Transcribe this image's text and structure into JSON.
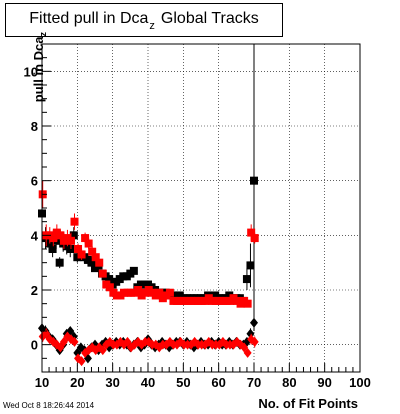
{
  "chart_data": {
    "type": "scatter",
    "title": "Fitted pull in Dca",
    "title_subscript": "z",
    "title_suffix": "Global Tracks",
    "ylabel": "pull in Dca",
    "ylabel_subscript": "z",
    "xlabel": "No. of Fit Points",
    "xlim": [
      10,
      100
    ],
    "ylim": [
      -1,
      11
    ],
    "x_ticks": [
      10,
      20,
      30,
      40,
      50,
      60,
      70,
      80,
      90,
      100
    ],
    "y_ticks": [
      0,
      2,
      4,
      6,
      8,
      10
    ],
    "grid": true,
    "series": [
      {
        "color": "#000000",
        "marker": "square",
        "x": [
          10,
          11,
          12,
          13,
          14,
          15,
          16,
          17,
          18,
          19,
          20,
          21,
          22,
          23,
          24,
          25,
          26,
          27,
          28,
          29,
          30,
          31,
          32,
          33,
          34,
          35,
          36,
          37,
          38,
          39,
          40,
          41,
          42,
          43,
          44,
          45,
          46,
          47,
          48,
          49,
          50,
          51,
          52,
          53,
          54,
          55,
          56,
          57,
          58,
          59,
          60,
          61,
          62,
          63,
          64,
          65,
          66,
          67,
          68,
          69,
          70
        ],
        "y": [
          4.8,
          3.9,
          3.7,
          3.5,
          3.8,
          3.0,
          3.7,
          3.6,
          3.5,
          4.0,
          3.2,
          3.3,
          3.2,
          3.1,
          3.0,
          2.8,
          2.9,
          2.6,
          2.5,
          2.4,
          2.2,
          2.3,
          2.4,
          2.5,
          2.5,
          2.6,
          2.7,
          2.1,
          2.2,
          2.2,
          2.2,
          2.1,
          2.0,
          1.9,
          1.9,
          1.9,
          1.8,
          1.8,
          1.8,
          1.8,
          1.7,
          1.7,
          1.7,
          1.7,
          1.7,
          1.7,
          1.7,
          1.8,
          1.7,
          1.8,
          1.7,
          1.7,
          1.7,
          1.8,
          1.7,
          1.7,
          1.7,
          1.6,
          2.4,
          2.9,
          6.0
        ],
        "yerr": [
          0.6,
          0.4,
          0.3,
          0.3,
          0.3,
          0.2,
          0.3,
          0.3,
          0.3,
          0.3,
          0.2,
          0.2,
          0.2,
          0.2,
          0.2,
          0.1,
          0.1,
          0.1,
          0.1,
          0.1,
          0.1,
          0.1,
          0.1,
          0.1,
          0.1,
          0.1,
          0.1,
          0.1,
          0.1,
          0.1,
          0.1,
          0.1,
          0.1,
          0.1,
          0.1,
          0.1,
          0.1,
          0.1,
          0.1,
          0.1,
          0.1,
          0.1,
          0.1,
          0.1,
          0.1,
          0.1,
          0.1,
          0.1,
          0.1,
          0.1,
          0.1,
          0.1,
          0.1,
          0.1,
          0.1,
          0.1,
          0.1,
          0.1,
          0.4,
          0.8,
          5.5
        ]
      },
      {
        "color": "#ff0000",
        "marker": "square",
        "x": [
          10.2,
          11.2,
          12.2,
          13.2,
          14.2,
          15.2,
          16.2,
          17.2,
          18.2,
          19.2,
          20.2,
          21.2,
          22.2,
          23.2,
          24.2,
          25.2,
          26.2,
          27.2,
          28.2,
          29.2,
          30.2,
          31.2,
          32.2,
          33.2,
          34.2,
          35.2,
          36.2,
          37.2,
          38.2,
          39.2,
          40.2,
          41.2,
          42.2,
          43.2,
          44.2,
          45.2,
          46.2,
          47.2,
          48.2,
          49.2,
          50.2,
          51.2,
          52.2,
          53.2,
          54.2,
          55.2,
          56.2,
          57.2,
          58.2,
          59.2,
          60.2,
          61.2,
          62.2,
          63.2,
          64.2,
          65.2,
          66.2,
          67.2,
          68.2,
          69.2,
          70.2
        ],
        "y": [
          5.5,
          4.0,
          4.0,
          3.9,
          4.1,
          4.0,
          3.8,
          3.9,
          3.8,
          4.5,
          3.5,
          3.3,
          3.9,
          3.7,
          3.4,
          3.2,
          3.0,
          2.6,
          2.2,
          2.1,
          1.9,
          1.8,
          1.8,
          1.9,
          1.9,
          1.9,
          1.9,
          2.0,
          1.8,
          1.9,
          2.0,
          1.9,
          1.8,
          1.9,
          1.7,
          1.8,
          1.9,
          1.6,
          1.6,
          1.6,
          1.6,
          1.6,
          1.6,
          1.6,
          1.6,
          1.6,
          1.6,
          1.7,
          1.6,
          1.6,
          1.6,
          1.6,
          1.6,
          1.6,
          1.7,
          1.6,
          1.5,
          1.6,
          1.5,
          4.1,
          3.9
        ],
        "yerr": [
          0.5,
          0.4,
          0.3,
          0.3,
          0.3,
          0.2,
          0.3,
          0.3,
          0.3,
          0.3,
          0.2,
          0.2,
          0.2,
          0.2,
          0.2,
          0.1,
          0.1,
          0.1,
          0.1,
          0.1,
          0.1,
          0.1,
          0.1,
          0.1,
          0.1,
          0.1,
          0.1,
          0.1,
          0.1,
          0.1,
          0.1,
          0.1,
          0.1,
          0.1,
          0.1,
          0.1,
          0.1,
          0.1,
          0.1,
          0.1,
          0.1,
          0.1,
          0.1,
          0.1,
          0.1,
          0.1,
          0.1,
          0.1,
          0.1,
          0.1,
          0.1,
          0.1,
          0.1,
          0.1,
          0.1,
          0.1,
          0.1,
          0.1,
          0.1,
          0.3,
          0.2
        ]
      },
      {
        "color": "#000000",
        "marker": "diamond",
        "x": [
          10,
          11,
          12,
          13,
          14,
          15,
          16,
          17,
          18,
          19,
          20,
          21,
          22,
          23,
          24,
          25,
          26,
          27,
          28,
          29,
          30,
          31,
          32,
          33,
          34,
          35,
          36,
          37,
          38,
          39,
          40,
          41,
          42,
          43,
          44,
          45,
          46,
          47,
          48,
          49,
          50,
          51,
          52,
          53,
          54,
          55,
          56,
          57,
          58,
          59,
          60,
          61,
          62,
          63,
          64,
          65,
          66,
          67,
          68,
          69,
          70
        ],
        "y": [
          0.6,
          0.5,
          0.3,
          0.2,
          0.0,
          -0.2,
          0.0,
          0.4,
          0.5,
          0.3,
          -0.3,
          -0.1,
          -0.2,
          -0.5,
          -0.1,
          0.0,
          -0.2,
          0.0,
          0.1,
          -0.1,
          0.0,
          0.1,
          0.0,
          0.1,
          0.0,
          -0.1,
          0.0,
          0.1,
          -0.1,
          0.0,
          0.2,
          0.0,
          -0.1,
          0.0,
          0.1,
          0.0,
          -0.1,
          0.0,
          0.1,
          0.1,
          0.0,
          0.1,
          0.0,
          -0.1,
          0.0,
          0.1,
          0.0,
          0.0,
          0.1,
          0.0,
          0.1,
          0.0,
          0.0,
          0.1,
          0.0,
          0.1,
          0.0,
          0.0,
          0.1,
          0.4,
          0.8
        ],
        "yerr": [
          0.2,
          0.2,
          0.1,
          0.1,
          0.1,
          0.1,
          0.1,
          0.1,
          0.1,
          0.1,
          0.1,
          0.1,
          0.1,
          0.1,
          0.1,
          0.1,
          0.1,
          0.1,
          0.1,
          0.1,
          0.1,
          0.1,
          0.1,
          0.1,
          0.1,
          0.1,
          0.1,
          0.1,
          0.1,
          0.1,
          0.1,
          0.1,
          0.1,
          0.1,
          0.1,
          0.1,
          0.1,
          0.1,
          0.1,
          0.1,
          0.1,
          0.1,
          0.1,
          0.1,
          0.1,
          0.1,
          0.1,
          0.1,
          0.1,
          0.1,
          0.1,
          0.1,
          0.1,
          0.1,
          0.1,
          0.1,
          0.1,
          0.1,
          0.1,
          0.2,
          0.3
        ]
      },
      {
        "color": "#ff0000",
        "marker": "diamond",
        "x": [
          10.2,
          11.2,
          12.2,
          13.2,
          14.2,
          15.2,
          16.2,
          17.2,
          18.2,
          19.2,
          20.2,
          21.2,
          22.2,
          23.2,
          24.2,
          25.2,
          26.2,
          27.2,
          28.2,
          29.2,
          30.2,
          31.2,
          32.2,
          33.2,
          34.2,
          35.2,
          36.2,
          37.2,
          38.2,
          39.2,
          40.2,
          41.2,
          42.2,
          43.2,
          44.2,
          45.2,
          46.2,
          47.2,
          48.2,
          49.2,
          50.2,
          51.2,
          52.2,
          53.2,
          54.2,
          55.2,
          56.2,
          57.2,
          58.2,
          59.2,
          60.2,
          61.2,
          62.2,
          63.2,
          64.2,
          65.2,
          66.2,
          67.2,
          68.2,
          69.2,
          70.2
        ],
        "y": [
          0.3,
          0.4,
          0.2,
          0.1,
          0.0,
          -0.1,
          0.1,
          0.3,
          0.2,
          0.1,
          -0.5,
          -0.6,
          -0.3,
          -0.2,
          -0.1,
          -0.2,
          -0.1,
          -0.2,
          0.0,
          0.1,
          0.0,
          0.0,
          0.1,
          0.0,
          0.1,
          -0.1,
          0.0,
          0.1,
          0.0,
          0.1,
          0.1,
          0.0,
          0.0,
          -0.1,
          0.0,
          0.0,
          0.1,
          0.0,
          0.0,
          0.1,
          0.0,
          0.0,
          0.0,
          0.1,
          0.0,
          0.0,
          0.0,
          0.1,
          0.0,
          0.0,
          0.0,
          0.1,
          0.0,
          0.0,
          0.0,
          0.1,
          0.0,
          -0.1,
          -0.3,
          0.2,
          0.1
        ],
        "yerr": [
          0.2,
          0.2,
          0.1,
          0.1,
          0.1,
          0.1,
          0.1,
          0.1,
          0.1,
          0.1,
          0.1,
          0.1,
          0.1,
          0.1,
          0.1,
          0.1,
          0.1,
          0.1,
          0.1,
          0.1,
          0.1,
          0.1,
          0.1,
          0.1,
          0.1,
          0.1,
          0.1,
          0.1,
          0.1,
          0.1,
          0.1,
          0.1,
          0.1,
          0.1,
          0.1,
          0.1,
          0.1,
          0.1,
          0.1,
          0.1,
          0.1,
          0.1,
          0.1,
          0.1,
          0.1,
          0.1,
          0.1,
          0.1,
          0.1,
          0.1,
          0.1,
          0.1,
          0.1,
          0.1,
          0.1,
          0.1,
          0.1,
          0.1,
          0.1,
          0.2,
          0.2
        ]
      }
    ]
  },
  "footer": {
    "datestamp": "Wed Oct  8 18:26:44 2014"
  }
}
